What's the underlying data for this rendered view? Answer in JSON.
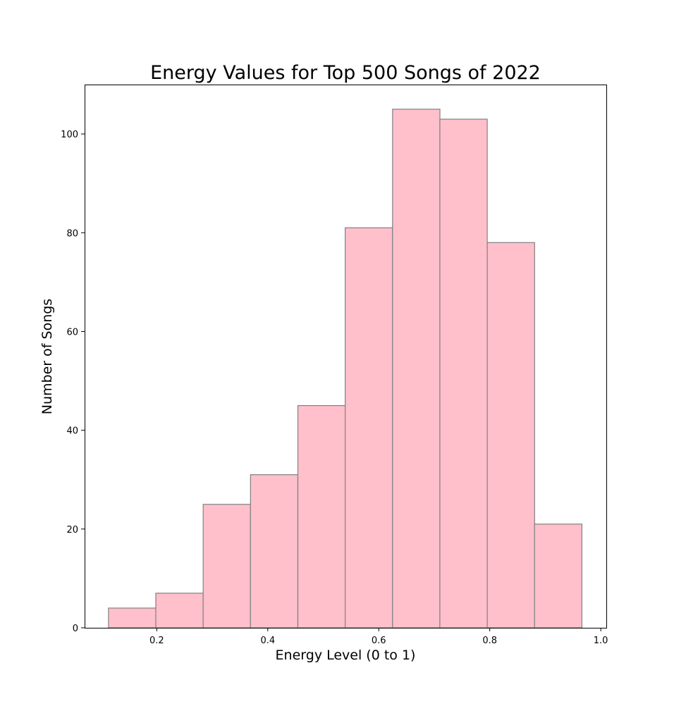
{
  "chart_data": {
    "type": "bar",
    "title": "Energy Values for Top 500 Songs of 2022",
    "xlabel": "Energy Level (0 to 1)",
    "ylabel": "Number of Songs",
    "bin_edges": [
      0.113,
      0.1983,
      0.2836,
      0.3689,
      0.4542,
      0.5395,
      0.6248,
      0.7101,
      0.7954,
      0.8807,
      0.966
    ],
    "values": [
      4,
      7,
      25,
      31,
      45,
      81,
      105,
      103,
      78,
      21
    ],
    "xlim": [
      0.07,
      1.01
    ],
    "ylim": [
      0,
      110
    ],
    "x_ticks": [
      0.2,
      0.4,
      0.6,
      0.8,
      1.0
    ],
    "x_tick_labels": [
      "0.2",
      "0.4",
      "0.6",
      "0.8",
      "1.0"
    ],
    "y_ticks": [
      0,
      20,
      40,
      60,
      80,
      100
    ],
    "y_tick_labels": [
      "0",
      "20",
      "40",
      "60",
      "80",
      "100"
    ],
    "grid": false,
    "legend": "none",
    "bar_color": "#ffc0cb",
    "edge_color": "#808080"
  }
}
